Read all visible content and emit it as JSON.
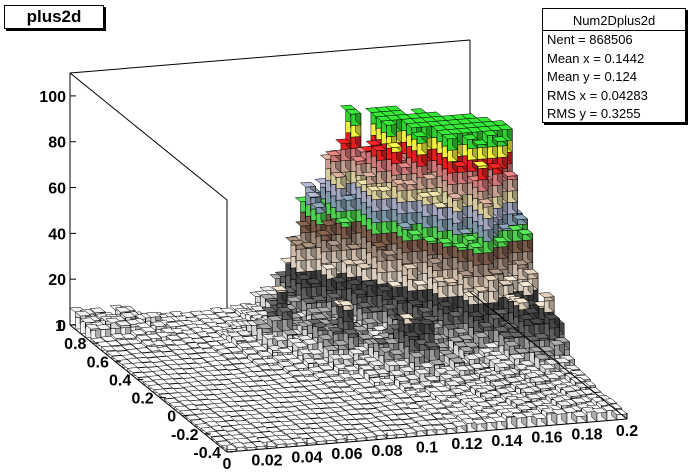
{
  "title": "plus2d",
  "stats": {
    "name": "Num2Dplus2d",
    "rows": [
      "Nent = 868506",
      "Mean x = 0.1442",
      "Mean y  =  0.124",
      "RMS x  = 0.04283",
      "RMS y  = 0.3255"
    ]
  },
  "chart_data": {
    "type": "lego",
    "title": "plus2d",
    "xlim": [
      0,
      0.2
    ],
    "ylim": [
      -0.4,
      1.0
    ],
    "zlim": [
      0,
      110
    ],
    "x_ticks": [
      "0",
      "0.02",
      "0.04",
      "0.06",
      "0.08",
      "0.1",
      "0.12",
      "0.14",
      "0.16",
      "0.18",
      "0.2"
    ],
    "y_ticks": [
      "-0.4",
      "-0.2",
      "0",
      "0.2",
      "0.4",
      "0.6",
      "0.8",
      "1"
    ],
    "z_ticks": [
      "0",
      "20",
      "40",
      "60",
      "80",
      "100"
    ],
    "color_levels": [
      0,
      5,
      10,
      15,
      20,
      25,
      30,
      35,
      40,
      45,
      50,
      55,
      60,
      65,
      70,
      75,
      80,
      85
    ],
    "color_palette": [
      "#f2f2f2",
      "#d6d6d6",
      "#9a9a9a",
      "#5e5e5e",
      "#454545",
      "#ddd0c0",
      "#ccbba8",
      "#9c8878",
      "#7a5a48",
      "#4ed04e",
      "#7f98a8",
      "#a3a8c0",
      "#d8cc9c",
      "#c8a090",
      "#d07878",
      "#e02020",
      "#f0f040",
      "#30d030",
      "#000000"
    ],
    "peaks": [
      {
        "x": 0.154,
        "y": 0.75,
        "z": 88
      },
      {
        "x": 0.164,
        "y": 0.7,
        "z": 74
      },
      {
        "x": 0.184,
        "y": 0.6,
        "z": 88
      },
      {
        "x": 0.182,
        "y": 0.65,
        "z": 70
      },
      {
        "x": 0.176,
        "y": 0.55,
        "z": 64
      },
      {
        "x": 0.134,
        "y": 0.85,
        "z": 62
      },
      {
        "x": 0.146,
        "y": 0.8,
        "z": 66
      },
      {
        "x": 0.14,
        "y": 0.65,
        "z": 56
      },
      {
        "x": 0.16,
        "y": 0.55,
        "z": 52
      },
      {
        "x": 0.17,
        "y": 0.4,
        "z": 50
      },
      {
        "x": 0.196,
        "y": 0.5,
        "z": 44
      },
      {
        "x": 0.12,
        "y": 0.9,
        "z": 50
      },
      {
        "x": 0.11,
        "y": 0.8,
        "z": 44
      },
      {
        "x": 0.03,
        "y": 0.85,
        "z": 8
      },
      {
        "x": 0.19,
        "y": 0.2,
        "z": 32
      },
      {
        "x": 0.08,
        "y": 0.6,
        "z": 22
      },
      {
        "x": 0.1,
        "y": 0.4,
        "z": 26
      },
      {
        "x": 0.125,
        "y": 0.2,
        "z": 30
      }
    ]
  }
}
